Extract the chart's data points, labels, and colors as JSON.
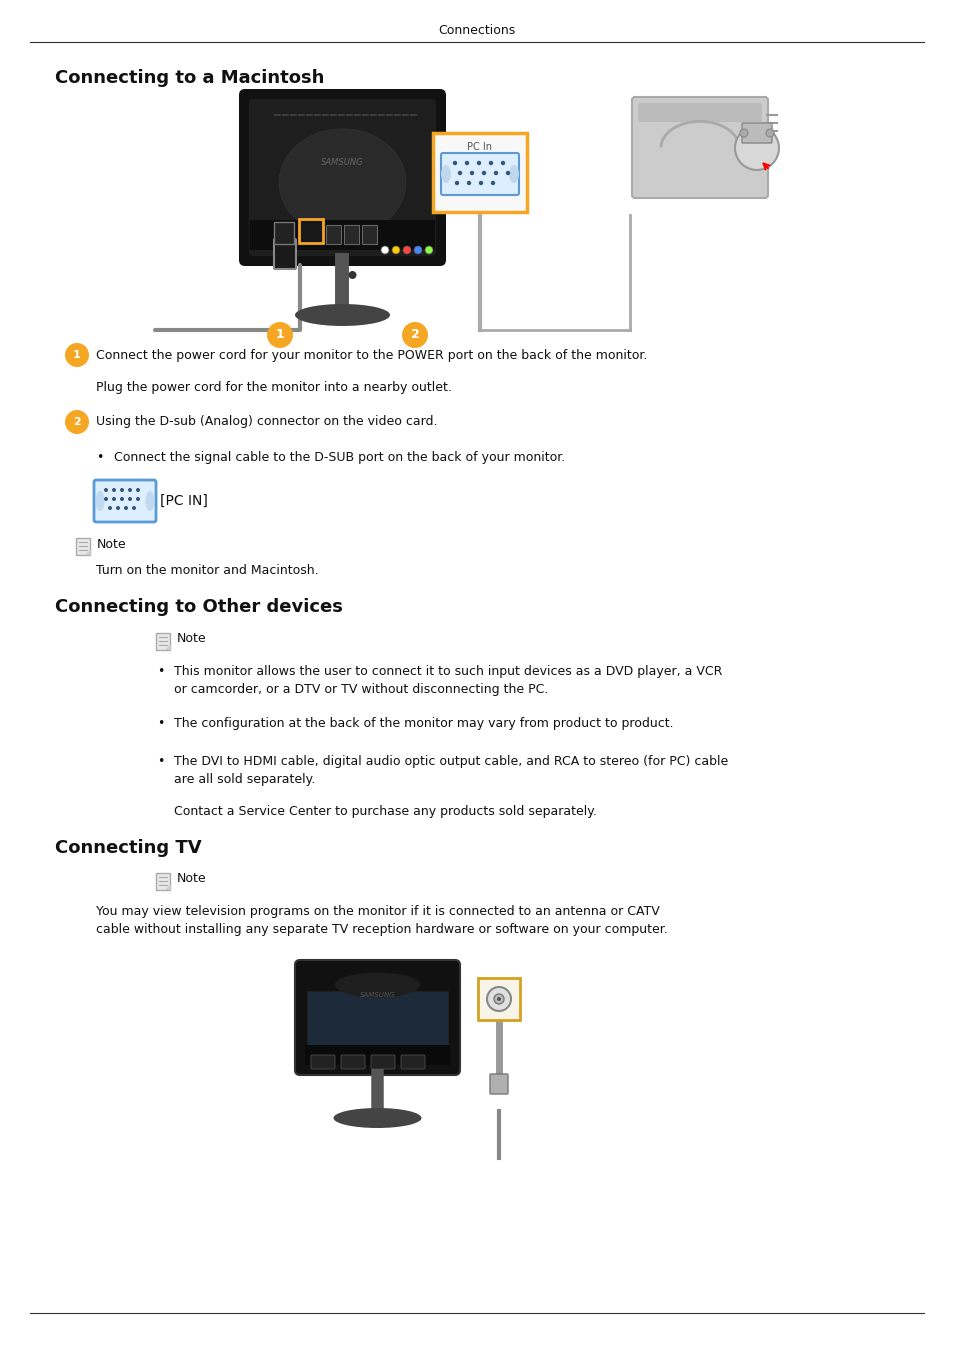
{
  "page_title": "Connections",
  "bg_color": "#ffffff",
  "text_color": "#000000",
  "section1_title": "Connecting to a Macintosh",
  "section2_title": "Connecting to Other devices",
  "section3_title": "Connecting TV",
  "step1_text": "Connect the power cord for your monitor to the POWER port on the back of the monitor.",
  "step1b_text": "Plug the power cord for the monitor into a nearby outlet.",
  "step2_text": "Using the D-sub (Analog) connector on the video card.",
  "bullet1_text": "Connect the signal cable to the D-SUB port on the back of your monitor.",
  "pc_in_label": "[PC IN]",
  "note_label": "Note",
  "note1_text": "Turn on the monitor and Macintosh.",
  "note2_label": "Note",
  "bullet2a": "This monitor allows the user to connect it to such input devices as a DVD player, a VCR",
  "bullet2b": "or camcorder, or a DTV or TV without disconnecting the PC.",
  "bullet3_text": "The configuration at the back of the monitor may vary from product to product.",
  "bullet4a": "The DVI to HDMI cable, digital audio optic output cable, and RCA to stereo (for PC) cable",
  "bullet4b": "are all sold separately.",
  "contact_text": "Contact a Service Center to purchase any products sold separately.",
  "note3_label": "Note",
  "tv_note1": "You may view television programs on the monitor if it is connected to an antenna or CATV",
  "tv_note2": "cable without installing any separate TV reception hardware or software on your computer.",
  "orange_color": "#F5A623",
  "blue_border_color": "#5B9BD5",
  "dark_monitor": "#1a1a1a",
  "mid_gray": "#888888",
  "light_bg": "#f0f0f0",
  "line_color": "#555555"
}
